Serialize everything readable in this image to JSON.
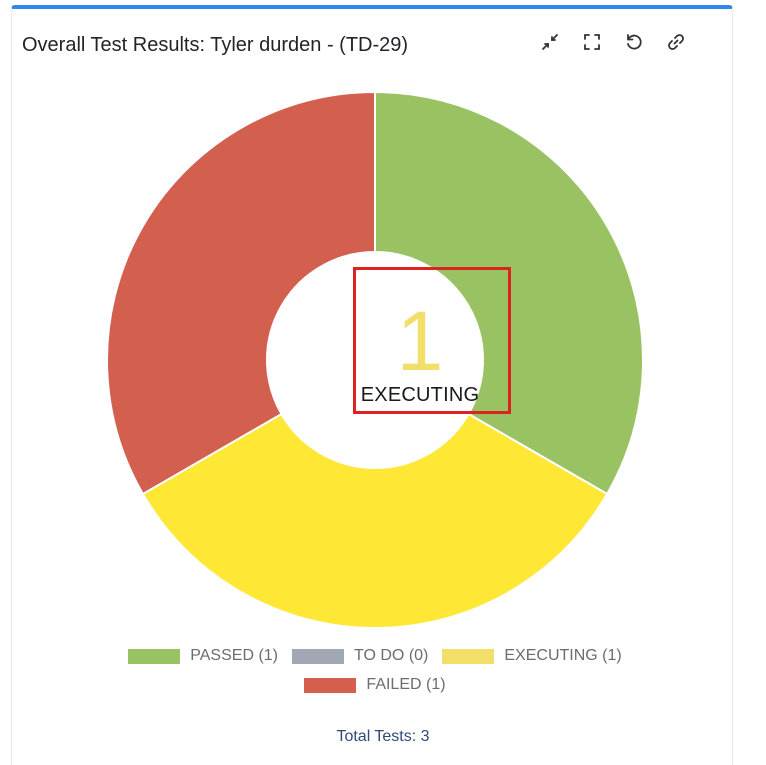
{
  "header": {
    "title": "Overall Test Results: Tyler durden - (TD-29)"
  },
  "toolbar": {
    "icons": [
      "collapse-icon",
      "fullscreen-icon",
      "refresh-icon",
      "link-icon"
    ]
  },
  "colors": {
    "accent_bar": "#2f86eb",
    "passed": "#99c262",
    "todo": "#a1a8b3",
    "executing": "#ffe736",
    "executing_legend": "#f1df6a",
    "failed": "#d35f4f",
    "highlight": "#dd2222"
  },
  "center": {
    "value": "1",
    "label": "EXECUTING"
  },
  "chart_data": {
    "type": "pie",
    "categories": [
      "PASSED",
      "TO DO",
      "EXECUTING",
      "FAILED"
    ],
    "values": [
      1,
      0,
      1,
      1
    ],
    "legend": [
      "PASSED (1)",
      "TO DO (0)",
      "EXECUTING (1)",
      "FAILED (1)"
    ],
    "legend_position": "bottom"
  },
  "footer": {
    "total_text": "Total Tests: 3"
  }
}
